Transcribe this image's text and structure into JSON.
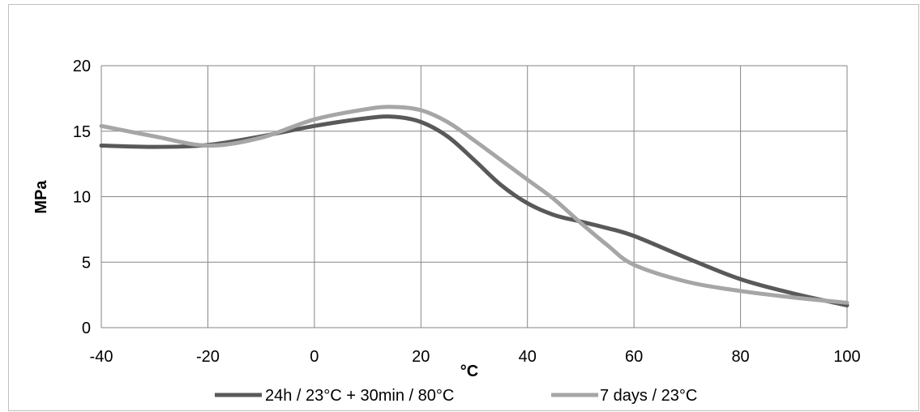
{
  "chart_data": {
    "type": "line",
    "title": "",
    "xlabel": "°C",
    "ylabel": "MPa",
    "xlim": [
      -40,
      100
    ],
    "ylim": [
      0,
      20
    ],
    "x_ticks": [
      -40,
      -20,
      0,
      20,
      40,
      60,
      80,
      100
    ],
    "y_ticks": [
      0,
      5,
      10,
      15,
      20
    ],
    "x_tick_labels": [
      "-40",
      "-20",
      "0",
      "20",
      "40",
      "60",
      "80",
      "100"
    ],
    "y_tick_labels": [
      "0",
      "5",
      "10",
      "15",
      "20"
    ],
    "grid": true,
    "legend_position": "bottom",
    "series": [
      {
        "name": "24h / 23°C + 30min / 80°C",
        "color": "#595959",
        "x": [
          -40,
          -30,
          -20,
          -10,
          0,
          10,
          15,
          20,
          25,
          30,
          35,
          40,
          45,
          50,
          55,
          60,
          70,
          80,
          90,
          100
        ],
        "y": [
          13.9,
          13.8,
          13.95,
          14.6,
          15.4,
          16.0,
          16.1,
          15.7,
          14.6,
          12.8,
          10.9,
          9.5,
          8.6,
          8.1,
          7.6,
          7.0,
          5.3,
          3.7,
          2.6,
          1.7
        ]
      },
      {
        "name": "7 days / 23°C",
        "color": "#a6a6a6",
        "x": [
          -40,
          -30,
          -20,
          -10,
          0,
          10,
          15,
          20,
          25,
          30,
          35,
          40,
          45,
          50,
          55,
          60,
          70,
          80,
          90,
          100
        ],
        "y": [
          15.4,
          14.6,
          13.9,
          14.5,
          15.9,
          16.7,
          16.85,
          16.6,
          15.7,
          14.3,
          12.8,
          11.3,
          9.8,
          8.0,
          6.3,
          4.8,
          3.5,
          2.8,
          2.3,
          1.9
        ]
      }
    ]
  }
}
